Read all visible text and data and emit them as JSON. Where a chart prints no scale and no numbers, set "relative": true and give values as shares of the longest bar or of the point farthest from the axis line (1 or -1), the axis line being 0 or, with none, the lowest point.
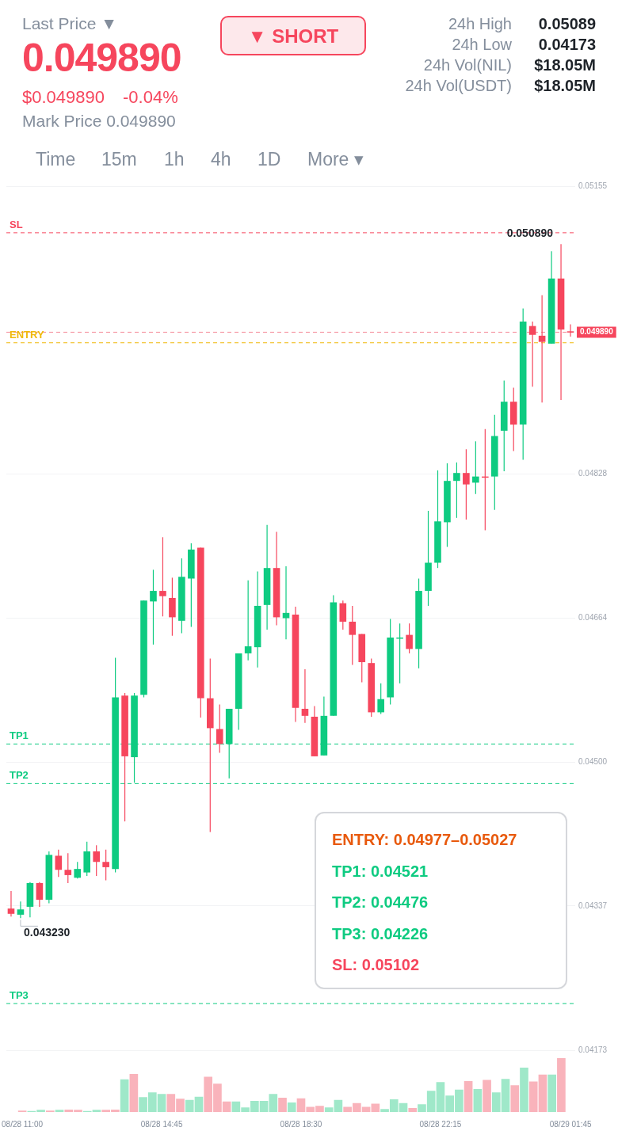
{
  "chart_data": [
    {
      "type": "other",
      "title": "0.049890",
      "annotations": [
        "Last Price ▼",
        "$0.049890",
        "-0.04%",
        "Mark Price 0.049890",
        "▼ SHORT",
        "24h High",
        "0.05089",
        "24h Low",
        "0.04173",
        "24h Vol(NIL)",
        "$18.05M",
        "24h Vol(USDT)",
        "$18.05M",
        "Time",
        "15m",
        "1h",
        "4h",
        "1D",
        "More ▾"
      ]
    },
    {
      "type": "candlestick",
      "categories": [
        null,
        null,
        null,
        null,
        null,
        null,
        null,
        null,
        null,
        null,
        null,
        null,
        null,
        null,
        null,
        null,
        null,
        null,
        null,
        null,
        null,
        null,
        null,
        null,
        null,
        null,
        null,
        null,
        null,
        null,
        null,
        null,
        null,
        null,
        null,
        null,
        null,
        null,
        null,
        null,
        null,
        null,
        null,
        null,
        null,
        null,
        null,
        null,
        null,
        null,
        null,
        null,
        null,
        null,
        null,
        null,
        null,
        null,
        null,
        null
      ],
      "ohlc": [
        [
          0.04334,
          0.04354,
          0.04325,
          0.04328
        ],
        [
          0.04327,
          0.04342,
          0.04323,
          0.04333
        ],
        [
          0.04336,
          0.04364,
          0.04324,
          0.04363
        ],
        [
          0.04363,
          0.04364,
          0.04336,
          0.04344
        ],
        [
          0.04344,
          0.04399,
          0.0434,
          0.04395
        ],
        [
          0.04394,
          0.04401,
          0.0437,
          0.04378
        ],
        [
          0.04378,
          0.04397,
          0.04363,
          0.04372
        ],
        [
          0.04369,
          0.04387,
          0.04368,
          0.04379
        ],
        [
          0.04375,
          0.0441,
          0.04371,
          0.04399
        ],
        [
          0.04399,
          0.04406,
          0.04371,
          0.04387
        ],
        [
          0.04387,
          0.04401,
          0.04366,
          0.04381
        ],
        [
          0.04379,
          0.04619,
          0.04375,
          0.04574
        ],
        [
          0.04576,
          0.04579,
          0.04433,
          0.04507
        ],
        [
          0.04506,
          0.04579,
          0.04477,
          0.04576
        ],
        [
          0.04577,
          0.04684,
          0.04574,
          0.04684
        ],
        [
          0.04683,
          0.04719,
          0.04634,
          0.04695
        ],
        [
          0.04695,
          0.04756,
          0.04666,
          0.04689
        ],
        [
          0.04687,
          0.0471,
          0.04644,
          0.04665
        ],
        [
          0.04661,
          0.04732,
          0.04647,
          0.04711
        ],
        [
          0.04709,
          0.04749,
          0.04654,
          0.04742
        ],
        [
          0.04744,
          0.04744,
          0.04551,
          0.04573
        ],
        [
          0.04573,
          0.04618,
          0.04421,
          0.04539
        ],
        [
          0.04538,
          0.04566,
          0.04511,
          0.04521
        ],
        [
          0.04521,
          0.04561,
          0.04482,
          0.04561
        ],
        [
          0.04561,
          0.04624,
          0.04537,
          0.04624
        ],
        [
          0.04624,
          0.04707,
          0.04616,
          0.04632
        ],
        [
          0.04631,
          0.04717,
          0.04608,
          0.04678
        ],
        [
          0.04679,
          0.0477,
          0.04651,
          0.04721
        ],
        [
          0.04721,
          0.04762,
          0.04656,
          0.04665
        ],
        [
          0.04664,
          0.04723,
          0.0464,
          0.0467
        ],
        [
          0.04668,
          0.04677,
          0.04546,
          0.04562
        ],
        [
          0.04561,
          0.04606,
          0.04545,
          0.04553
        ],
        [
          0.04552,
          0.04564,
          0.04507,
          0.04507
        ],
        [
          0.04508,
          0.04575,
          0.04508,
          0.04553
        ],
        [
          0.04553,
          0.0469,
          0.04553,
          0.04682
        ],
        [
          0.04681,
          0.04684,
          0.04651,
          0.0466
        ],
        [
          0.0466,
          0.04678,
          0.04611,
          0.04645
        ],
        [
          0.04646,
          0.04646,
          0.04591,
          0.04614
        ],
        [
          0.04613,
          0.04618,
          0.04552,
          0.04557
        ],
        [
          0.04557,
          0.0459,
          0.04555,
          0.04572
        ],
        [
          0.04574,
          0.04663,
          0.04566,
          0.04642
        ],
        [
          0.04641,
          0.04658,
          0.0459,
          0.04642
        ],
        [
          0.04645,
          0.04658,
          0.04624,
          0.04629
        ],
        [
          0.04629,
          0.04709,
          0.04607,
          0.04695
        ],
        [
          0.04695,
          0.04786,
          0.04678,
          0.04727
        ],
        [
          0.04727,
          0.04832,
          0.04721,
          0.04774
        ],
        [
          0.04773,
          0.0484,
          0.04745,
          0.0482
        ],
        [
          0.0482,
          0.04841,
          0.04778,
          0.04829
        ],
        [
          0.04829,
          0.04856,
          0.04776,
          0.04816
        ],
        [
          0.04818,
          0.04865,
          0.04805,
          0.04825
        ],
        [
          0.04825,
          0.04879,
          0.04764,
          0.04824
        ],
        [
          0.04825,
          0.04895,
          0.04787,
          0.04871
        ],
        [
          0.04877,
          0.04934,
          0.04831,
          0.0491
        ],
        [
          0.0491,
          0.04926,
          0.04854,
          0.04884
        ],
        [
          0.04884,
          0.05016,
          0.04844,
          0.05001
        ],
        [
          0.04996,
          0.05001,
          0.04927,
          0.04986
        ],
        [
          0.04985,
          0.05031,
          0.04909,
          0.04978
        ],
        [
          0.04976,
          0.05081,
          0.04976,
          0.0505
        ],
        [
          0.0505,
          0.05089,
          0.04912,
          0.04992
        ],
        [
          0.0499,
          0.04998,
          0.04984,
          0.04989
        ]
      ],
      "colors": [
        "#f6465d",
        "#0ecb81",
        "#0ecb81",
        "#f6465d",
        "#0ecb81",
        "#f6465d",
        "#f6465d",
        "#0ecb81",
        "#0ecb81",
        "#f6465d",
        "#f6465d",
        "#0ecb81",
        "#f6465d",
        "#0ecb81",
        "#0ecb81",
        "#0ecb81",
        "#f6465d",
        "#f6465d",
        "#0ecb81",
        "#0ecb81",
        "#f6465d",
        "#f6465d",
        "#f6465d",
        "#0ecb81",
        "#0ecb81",
        "#0ecb81",
        "#0ecb81",
        "#0ecb81",
        "#f6465d",
        "#0ecb81",
        "#f6465d",
        "#f6465d",
        "#f6465d",
        "#0ecb81",
        "#0ecb81",
        "#f6465d",
        "#f6465d",
        "#f6465d",
        "#f6465d",
        "#0ecb81",
        "#0ecb81",
        "#0ecb81",
        "#f6465d",
        "#0ecb81",
        "#0ecb81",
        "#0ecb81",
        "#0ecb81",
        "#0ecb81",
        "#f6465d",
        "#0ecb81",
        "#f6465d",
        "#0ecb81",
        "#0ecb81",
        "#f6465d",
        "#0ecb81",
        "#f6465d",
        "#f6465d",
        "#0ecb81",
        "#f6465d",
        "#f6465d"
      ],
      "ylim": [
        0.04173,
        0.05155
      ],
      "yticks": [
        0.04173,
        0.04337,
        {
          "value": 0.045,
          "label": "0.04500"
        },
        0.04664,
        0.04828,
        0.05155
      ],
      "grid": "y",
      "tick_labels": "y",
      "ref_lines": [
        {
          "axis": "y",
          "value": 0.05102,
          "label": "SL",
          "color": "#f6465d",
          "line_style": "dashed"
        },
        {
          "axis": "y",
          "value": 0.04989,
          "color": "#f58a98",
          "line_style": "dashed"
        },
        {
          "axis": "y",
          "value": 0.04977,
          "label": "ENTRY",
          "color": "#f0b90b",
          "line_style": "dashed"
        },
        {
          "axis": "y",
          "value": 0.04521,
          "label": "TP1",
          "color": "#0ecb81",
          "line_style": "dashed"
        },
        {
          "axis": "y",
          "value": 0.04476,
          "label": "TP2",
          "color": "#0ecb81",
          "line_style": "dashed"
        },
        {
          "axis": "y",
          "value": 0.04226,
          "label": "TP3",
          "color": "#0ecb81",
          "line_style": "dashed"
        }
      ],
      "annotations": [
        "0.050890",
        "0.043230",
        "0.049890",
        "ENTRY: 0.04977–0.05027",
        "TP1: 0.04521",
        "TP2: 0.04476",
        "TP3: 0.04226",
        "SL: 0.05102"
      ]
    },
    {
      "type": "bar",
      "relative": true,
      "tick_labels": "x",
      "categories": [
        "08/28 11:00",
        null,
        null,
        null,
        null,
        null,
        null,
        null,
        null,
        null,
        null,
        null,
        null,
        null,
        null,
        "08/28 14:45",
        null,
        null,
        null,
        null,
        null,
        null,
        null,
        null,
        null,
        null,
        null,
        null,
        null,
        null,
        "08/28 18:30",
        null,
        null,
        null,
        null,
        null,
        null,
        null,
        null,
        null,
        null,
        null,
        null,
        null,
        null,
        "08/28 22:15",
        null,
        null,
        null,
        null,
        null,
        null,
        null,
        null,
        null,
        null,
        null,
        null,
        null,
        "08/29 01:45"
      ],
      "values": [
        0.02,
        0.014,
        0.034,
        0.02,
        0.034,
        0.04,
        0.034,
        0.014,
        0.034,
        0.034,
        0.04,
        0.6,
        0.7,
        0.27,
        0.36,
        0.33,
        0.33,
        0.24,
        0.22,
        0.28,
        0.65,
        0.52,
        0.19,
        0.19,
        0.08,
        0.2,
        0.2,
        0.33,
        0.26,
        0.17,
        0.25,
        0.09,
        0.11,
        0.08,
        0.22,
        0.09,
        0.16,
        0.09,
        0.15,
        0.05,
        0.23,
        0.16,
        0.07,
        0.14,
        0.39,
        0.55,
        0.3,
        0.41,
        0.57,
        0.42,
        0.59,
        0.36,
        0.61,
        0.49,
        0.82,
        0.56,
        0.69,
        0.69,
        1,
        null
      ],
      "colors": [
        "#f9b3bb",
        "#9fe8c9",
        "#9fe8c9",
        "#f9b3bb",
        "#9fe8c9",
        "#f9b3bb",
        "#f9b3bb",
        "#9fe8c9",
        "#9fe8c9",
        "#f9b3bb",
        "#f9b3bb",
        "#9fe8c9",
        "#f9b3bb",
        "#9fe8c9",
        "#9fe8c9",
        "#9fe8c9",
        "#f9b3bb",
        "#f9b3bb",
        "#9fe8c9",
        "#9fe8c9",
        "#f9b3bb",
        "#f9b3bb",
        "#f9b3bb",
        "#9fe8c9",
        "#9fe8c9",
        "#9fe8c9",
        "#9fe8c9",
        "#9fe8c9",
        "#f9b3bb",
        "#9fe8c9",
        "#f9b3bb",
        "#f9b3bb",
        "#f9b3bb",
        "#9fe8c9",
        "#9fe8c9",
        "#f9b3bb",
        "#f9b3bb",
        "#f9b3bb",
        "#f9b3bb",
        "#9fe8c9",
        "#9fe8c9",
        "#9fe8c9",
        "#f9b3bb",
        "#9fe8c9",
        "#9fe8c9",
        "#9fe8c9",
        "#9fe8c9",
        "#9fe8c9",
        "#f9b3bb",
        "#9fe8c9",
        "#f9b3bb",
        "#9fe8c9",
        "#9fe8c9",
        "#f9b3bb",
        "#9fe8c9",
        "#f9b3bb",
        "#f9b3bb",
        "#9fe8c9",
        "#f9b3bb",
        "#f9b3bb"
      ]
    }
  ]
}
